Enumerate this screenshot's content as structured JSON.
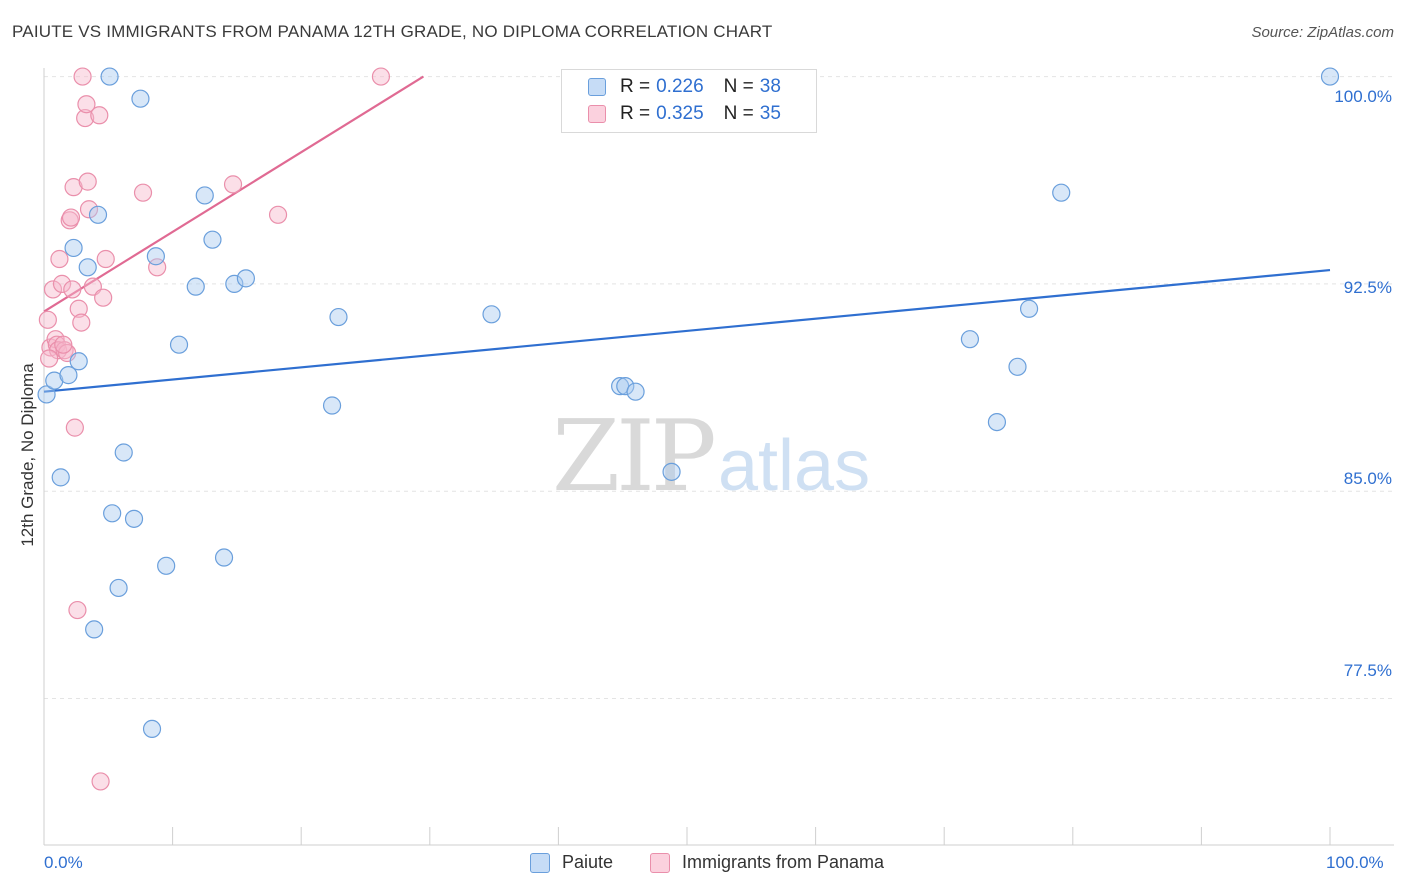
{
  "header": {
    "title": "PAIUTE VS IMMIGRANTS FROM PANAMA 12TH GRADE, NO DIPLOMA CORRELATION CHART",
    "source": "Source: ZipAtlas.com"
  },
  "watermark": {
    "zip": "ZIP",
    "atlas": "atlas"
  },
  "legend": {
    "rows": [
      {
        "r_label": "R =",
        "r_value": "0.226",
        "n_label": "N =",
        "n_value": "38"
      },
      {
        "r_label": "R =",
        "r_value": "0.325",
        "n_label": "N =",
        "n_value": "35"
      }
    ]
  },
  "colors": {
    "paiute_fill": "#a9c9f0",
    "paiute_stroke": "#6a9fdc",
    "paiute_line": "#2f6fd0",
    "panama_fill": "#f7b8cb",
    "panama_stroke": "#ea8fab",
    "panama_line": "#e06a93",
    "grid": "#e4e4e4",
    "tick_label": "#2f6fd0"
  },
  "chart_data": {
    "type": "scatter",
    "title": "PAIUTE VS IMMIGRANTS FROM PANAMA 12TH GRADE, NO DIPLOMA CORRELATION CHART",
    "xlabel": "",
    "ylabel": "12th Grade, No Diploma",
    "xlim": [
      0,
      100
    ],
    "ylim": [
      72.2,
      100.6
    ],
    "x_tick_labels": [
      "0.0%",
      "100.0%"
    ],
    "y_ticks": [
      77.5,
      85.0,
      92.5,
      100.0
    ],
    "y_tick_labels": [
      "77.5%",
      "85.0%",
      "92.5%",
      "100.0%"
    ],
    "grid": true,
    "legend_position": "top-center",
    "series": [
      {
        "name": "Paiute",
        "r": 0.226,
        "n": 38,
        "trend": {
          "x": [
            0,
            100
          ],
          "y": [
            88.6,
            93.0
          ]
        },
        "points": [
          {
            "x": 0.2,
            "y": 88.5
          },
          {
            "x": 0.8,
            "y": 89.0
          },
          {
            "x": 1.3,
            "y": 85.5
          },
          {
            "x": 1.9,
            "y": 89.2
          },
          {
            "x": 2.3,
            "y": 93.8
          },
          {
            "x": 2.7,
            "y": 89.7
          },
          {
            "x": 3.4,
            "y": 93.1
          },
          {
            "x": 3.9,
            "y": 80.0
          },
          {
            "x": 4.2,
            "y": 95.0
          },
          {
            "x": 5.1,
            "y": 100.0
          },
          {
            "x": 5.3,
            "y": 84.2
          },
          {
            "x": 5.8,
            "y": 81.5
          },
          {
            "x": 6.2,
            "y": 86.4
          },
          {
            "x": 7.0,
            "y": 84.0
          },
          {
            "x": 7.5,
            "y": 99.2
          },
          {
            "x": 8.4,
            "y": 76.4
          },
          {
            "x": 8.7,
            "y": 93.5
          },
          {
            "x": 9.5,
            "y": 82.3
          },
          {
            "x": 10.5,
            "y": 90.3
          },
          {
            "x": 11.8,
            "y": 92.4
          },
          {
            "x": 12.5,
            "y": 95.7
          },
          {
            "x": 13.1,
            "y": 94.1
          },
          {
            "x": 14.0,
            "y": 82.6
          },
          {
            "x": 14.8,
            "y": 92.5
          },
          {
            "x": 15.7,
            "y": 92.7
          },
          {
            "x": 22.4,
            "y": 88.1
          },
          {
            "x": 22.9,
            "y": 91.3
          },
          {
            "x": 34.8,
            "y": 91.4
          },
          {
            "x": 44.8,
            "y": 88.8
          },
          {
            "x": 45.2,
            "y": 88.8
          },
          {
            "x": 46.0,
            "y": 88.6
          },
          {
            "x": 48.8,
            "y": 85.7
          },
          {
            "x": 72.0,
            "y": 90.5
          },
          {
            "x": 74.1,
            "y": 87.5
          },
          {
            "x": 75.7,
            "y": 89.5
          },
          {
            "x": 76.6,
            "y": 91.6
          },
          {
            "x": 79.1,
            "y": 95.8
          },
          {
            "x": 100.0,
            "y": 100.0
          }
        ]
      },
      {
        "name": "Immigrants from Panama",
        "r": 0.325,
        "n": 35,
        "trend": {
          "x": [
            0,
            29.5
          ],
          "y": [
            91.5,
            100.0
          ]
        },
        "points": [
          {
            "x": 0.3,
            "y": 91.2
          },
          {
            "x": 0.5,
            "y": 90.2
          },
          {
            "x": 0.7,
            "y": 92.3
          },
          {
            "x": 0.9,
            "y": 90.5
          },
          {
            "x": 1.0,
            "y": 90.3
          },
          {
            "x": 1.1,
            "y": 90.1
          },
          {
            "x": 1.2,
            "y": 93.4
          },
          {
            "x": 1.4,
            "y": 92.5
          },
          {
            "x": 1.6,
            "y": 90.1
          },
          {
            "x": 1.8,
            "y": 90.0
          },
          {
            "x": 2.0,
            "y": 94.8
          },
          {
            "x": 2.1,
            "y": 94.9
          },
          {
            "x": 2.2,
            "y": 92.3
          },
          {
            "x": 2.3,
            "y": 96.0
          },
          {
            "x": 2.4,
            "y": 87.3
          },
          {
            "x": 2.6,
            "y": 80.7
          },
          {
            "x": 2.7,
            "y": 91.6
          },
          {
            "x": 2.9,
            "y": 91.1
          },
          {
            "x": 3.0,
            "y": 100.0
          },
          {
            "x": 3.2,
            "y": 98.5
          },
          {
            "x": 3.3,
            "y": 99.0
          },
          {
            "x": 3.4,
            "y": 96.2
          },
          {
            "x": 3.5,
            "y": 95.2
          },
          {
            "x": 3.8,
            "y": 92.4
          },
          {
            "x": 4.3,
            "y": 98.6
          },
          {
            "x": 4.4,
            "y": 74.5
          },
          {
            "x": 4.6,
            "y": 92.0
          },
          {
            "x": 4.8,
            "y": 93.4
          },
          {
            "x": 7.7,
            "y": 95.8
          },
          {
            "x": 8.8,
            "y": 93.1
          },
          {
            "x": 14.7,
            "y": 96.1
          },
          {
            "x": 18.2,
            "y": 95.0
          },
          {
            "x": 26.2,
            "y": 100.0
          },
          {
            "x": 0.4,
            "y": 89.8
          },
          {
            "x": 1.5,
            "y": 90.3
          }
        ]
      }
    ]
  },
  "bottom_legend": {
    "paiute": "Paiute",
    "panama": "Immigrants from Panama"
  }
}
